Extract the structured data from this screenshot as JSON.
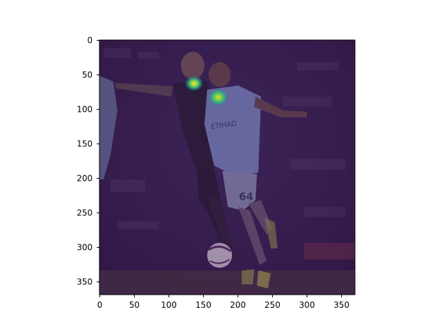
{
  "figure": {
    "image_description_hidden": "",
    "x_ticks": [
      "0",
      "50",
      "100",
      "150",
      "200",
      "250",
      "300",
      "350"
    ],
    "y_ticks": [
      "0",
      "50",
      "100",
      "150",
      "200",
      "250",
      "300",
      "350"
    ],
    "jersey_number": "64",
    "sponsor_text": "ETIHAD",
    "overlay_color": "#3b1a57",
    "heatmap_colors": [
      "#fde725",
      "#5ec962",
      "#21918c"
    ]
  }
}
